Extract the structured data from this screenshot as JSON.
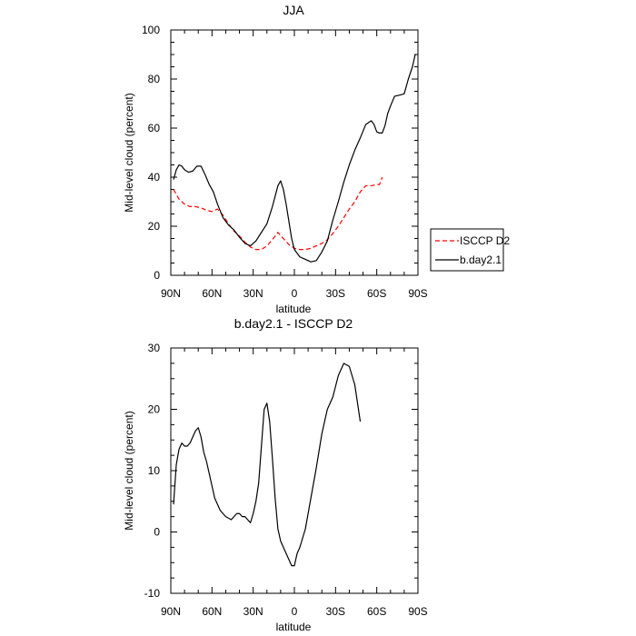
{
  "chart_data": [
    {
      "type": "line",
      "title": "JJA",
      "xlabel": "latitude",
      "ylabel": "Mid-level cloud (percent)",
      "xlim": [
        90,
        -90
      ],
      "ylim": [
        0,
        100
      ],
      "xticks": [
        90,
        60,
        30,
        0,
        -30,
        -60,
        -90
      ],
      "xtick_labels": [
        "90N",
        "60N",
        "30N",
        "0",
        "30S",
        "60S",
        "90S"
      ],
      "yticks": [
        0,
        20,
        40,
        60,
        80,
        100
      ],
      "ytick_labels": [
        "0",
        "20",
        "40",
        "60",
        "80",
        "100"
      ],
      "legend_position": "right",
      "series": [
        {
          "name": "ISCCP D2",
          "color": "#ff0000",
          "dash": "dashed",
          "x": [
            88,
            84,
            80,
            76,
            72,
            68,
            64,
            60,
            56,
            52,
            48,
            44,
            40,
            36,
            32,
            28,
            24,
            20,
            16,
            12,
            8,
            4,
            0,
            -4,
            -8,
            -12,
            -16,
            -20,
            -24,
            -28,
            -32,
            -36,
            -40,
            -44,
            -48,
            -52,
            -56,
            -60,
            -62,
            -64,
            -66
          ],
          "values": [
            35,
            31,
            29,
            28,
            28,
            27.5,
            26.5,
            26,
            27,
            24.5,
            21,
            18,
            16,
            13.5,
            11.5,
            10.5,
            10.5,
            12,
            14.5,
            17.5,
            15,
            12.5,
            11,
            10.5,
            10.5,
            11,
            12,
            13,
            14.5,
            17,
            20,
            23.5,
            27,
            30,
            34,
            36.5,
            36.5,
            37,
            37,
            40,
            null
          ]
        },
        {
          "name": "b.day2.1",
          "color": "#000000",
          "dash": "solid",
          "x": [
            88,
            86,
            84,
            82,
            80,
            77,
            74,
            71,
            68,
            65,
            62,
            59,
            56,
            52,
            48,
            44,
            40,
            36,
            32,
            28,
            24,
            20,
            16,
            12,
            10,
            8,
            6,
            4,
            2,
            0,
            -4,
            -8,
            -12,
            -16,
            -20,
            -24,
            -28,
            -32,
            -36,
            -40,
            -44,
            -48,
            -52,
            -56,
            -58,
            -60,
            -62,
            -64,
            -66,
            -68,
            -70,
            -73,
            -77,
            -80,
            -83,
            -86,
            -88
          ],
          "values": [
            39,
            43,
            45,
            44.5,
            43,
            42,
            42.5,
            44.5,
            44.5,
            41,
            37,
            34,
            29,
            23.5,
            20.5,
            18.5,
            15.5,
            13,
            12,
            14,
            17.5,
            21,
            28,
            36.5,
            38.5,
            35,
            29,
            22,
            15,
            10.5,
            7.5,
            6.5,
            5.5,
            6,
            9.5,
            14,
            22.5,
            30,
            38,
            45,
            51,
            56,
            61.5,
            63,
            61.5,
            58.5,
            58,
            58,
            61,
            66,
            69,
            73,
            73.5,
            74,
            80,
            85,
            90
          ]
        }
      ]
    },
    {
      "type": "line",
      "title": "b.day2.1 - ISCCP D2",
      "xlabel": "latitude",
      "ylabel": "Mid-level cloud (percent)",
      "xlim": [
        90,
        -90
      ],
      "ylim": [
        -10,
        30
      ],
      "xticks": [
        90,
        60,
        30,
        0,
        -30,
        -60,
        -90
      ],
      "xtick_labels": [
        "90N",
        "60N",
        "30N",
        "0",
        "30S",
        "60S",
        "90S"
      ],
      "yticks": [
        -10,
        0,
        10,
        20,
        30
      ],
      "ytick_labels": [
        "-10",
        "0",
        "10",
        "20",
        "30"
      ],
      "series": [
        {
          "color": "#000000",
          "dash": "solid",
          "x": [
            88,
            86,
            84,
            82,
            80,
            78,
            76,
            74,
            72,
            70,
            68,
            66,
            64,
            62,
            58,
            54,
            50,
            46,
            44,
            42,
            40,
            38,
            36,
            34,
            32,
            30,
            28,
            26,
            24,
            22,
            20,
            18,
            16,
            14,
            12,
            10,
            8,
            6,
            4,
            2,
            0,
            -2,
            -4,
            -8,
            -12,
            -16,
            -20,
            -24,
            -28,
            -32,
            -36,
            -40,
            -44,
            -48,
            -52,
            -55,
            -58,
            -61,
            -64,
            -66
          ],
          "values": [
            4.5,
            11,
            13.5,
            14.5,
            14,
            14,
            14.5,
            15.5,
            16.5,
            17,
            15.5,
            13,
            11.5,
            9.5,
            5.5,
            3.5,
            2.5,
            2,
            2.5,
            3,
            3,
            2.5,
            2.5,
            2,
            1.5,
            3,
            5,
            8,
            14,
            20,
            21,
            18,
            12,
            5.5,
            0.5,
            -1.5,
            -2.5,
            -3.5,
            -4.5,
            -5.5,
            -5.5,
            -3.5,
            -2.5,
            0.5,
            5.5,
            10.5,
            16,
            20,
            22,
            25.5,
            27.5,
            27,
            24,
            18,
            null,
            null,
            null,
            null,
            null,
            null
          ]
        }
      ]
    }
  ]
}
